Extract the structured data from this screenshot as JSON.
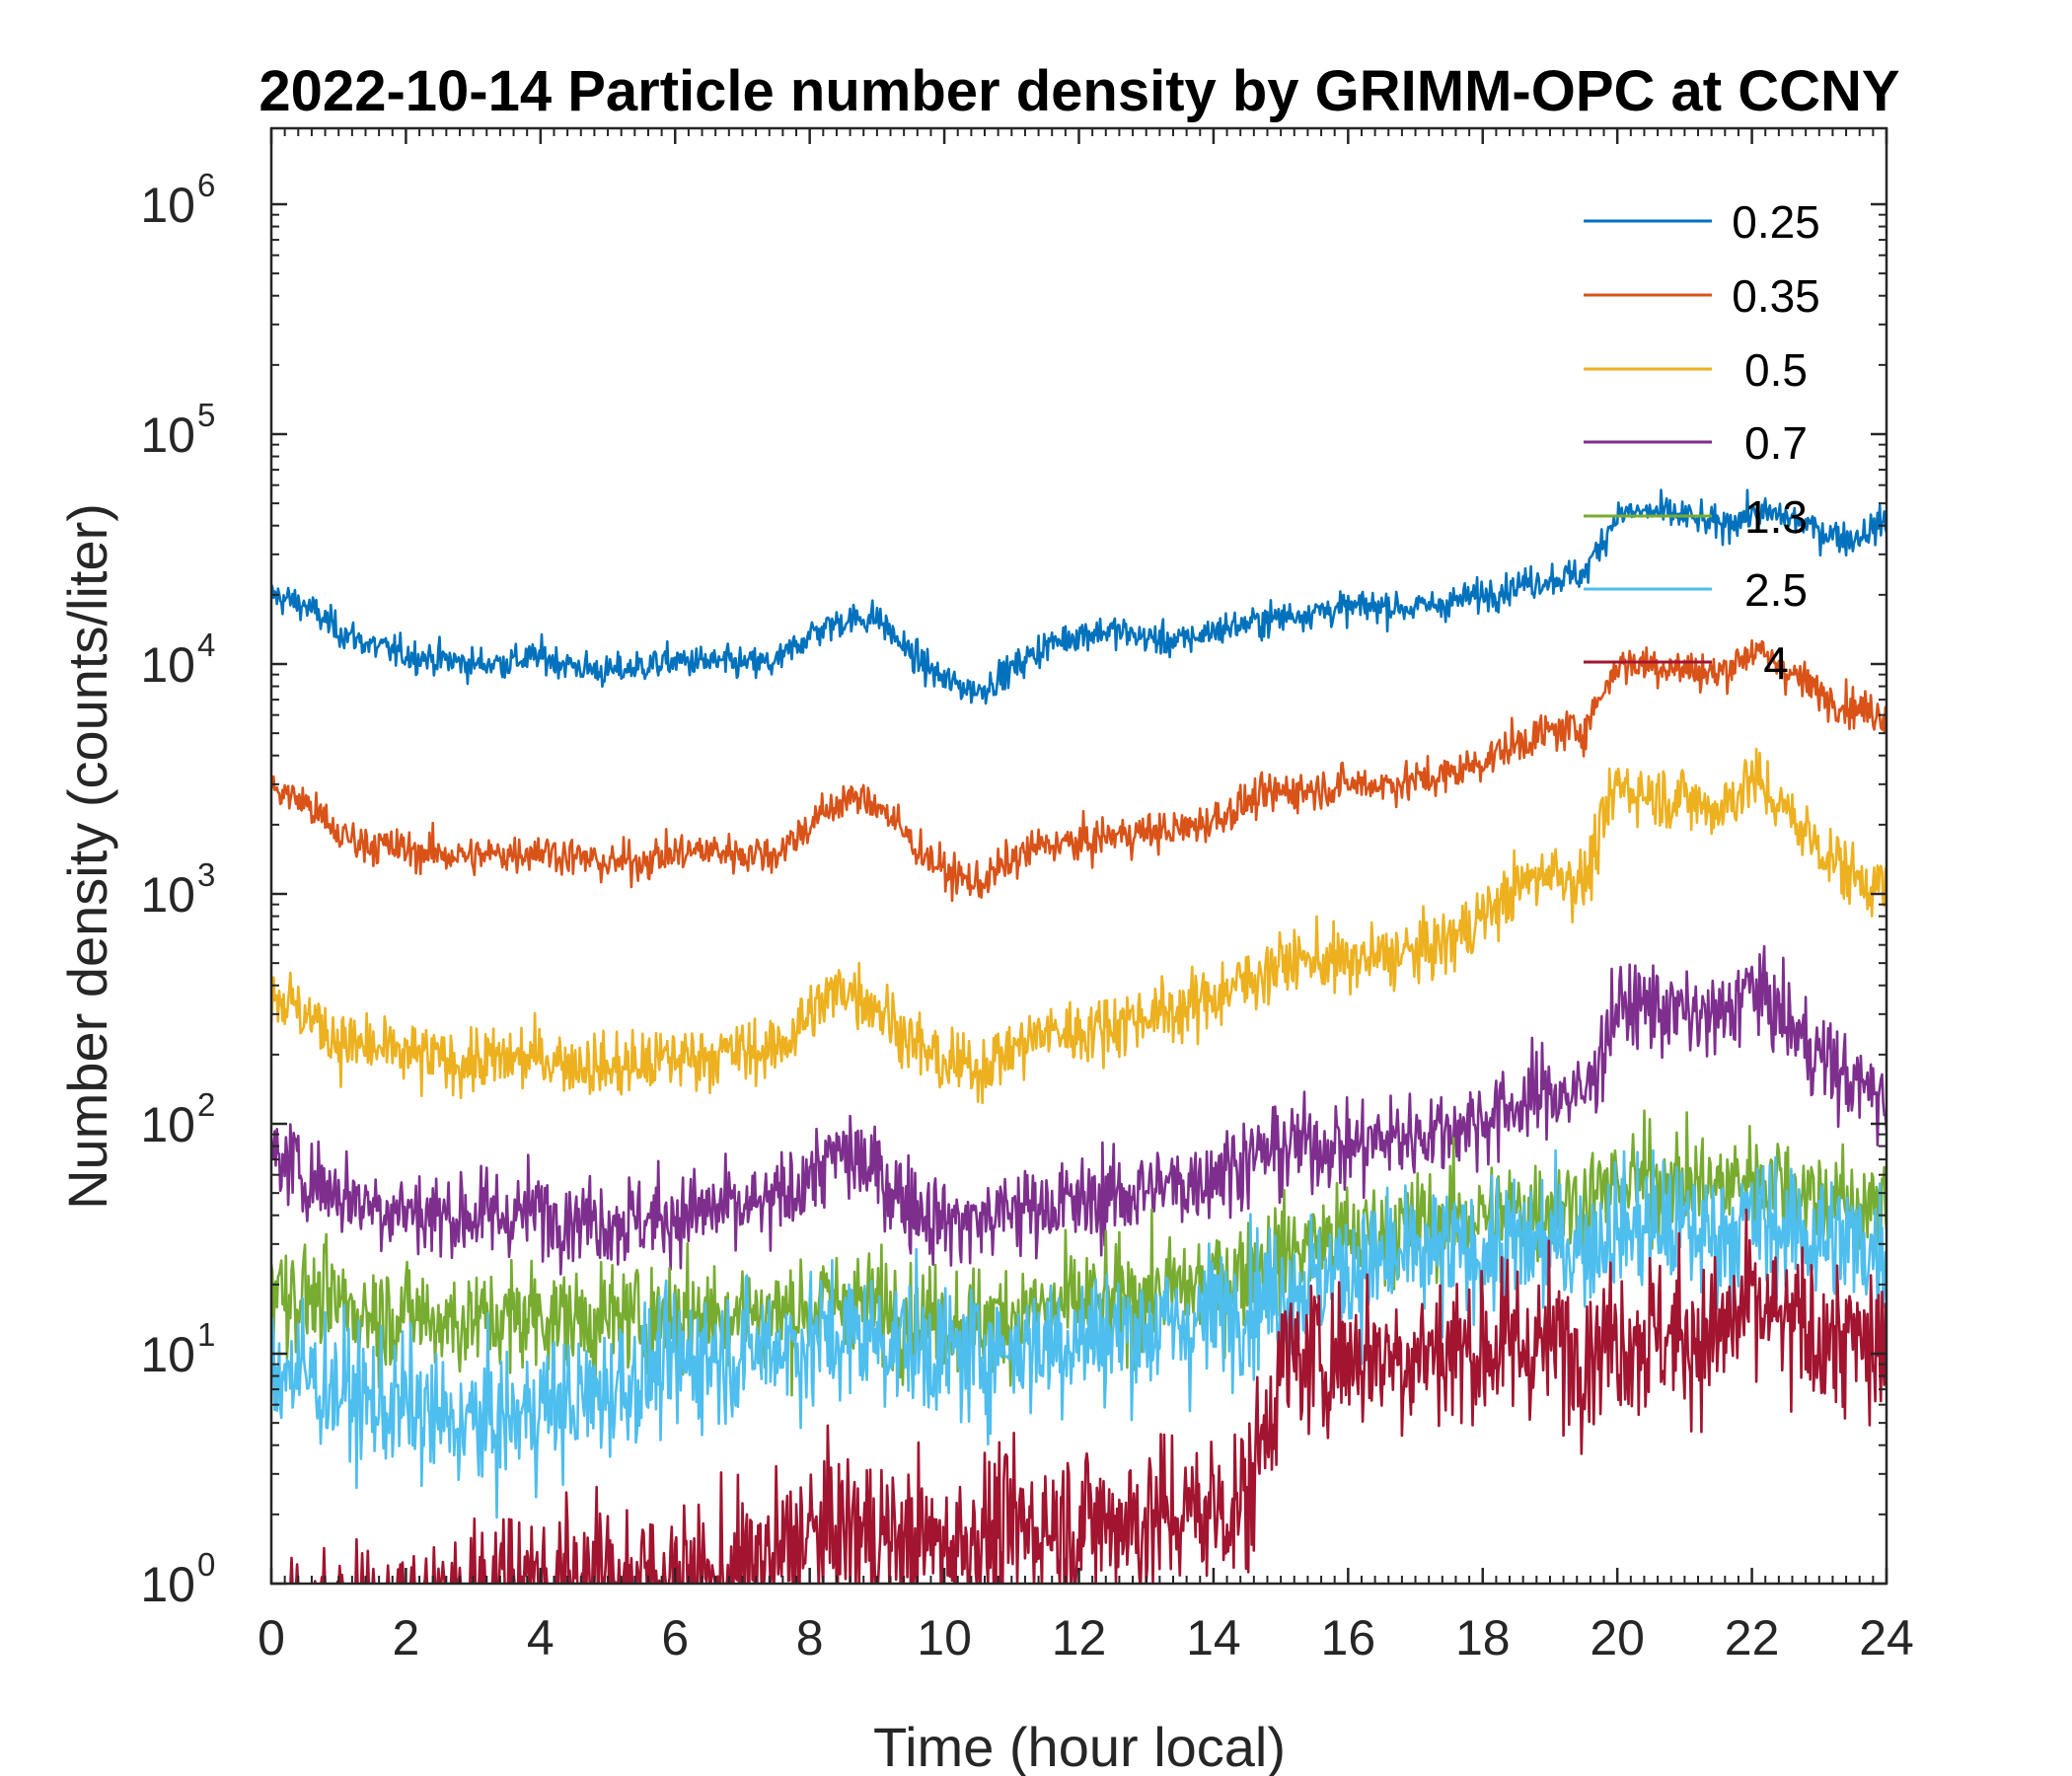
{
  "chart_data": {
    "type": "line",
    "title": "2022-10-14 Particle number density by GRIMM-OPC at CCNY",
    "xlabel": "Time (hour local)",
    "ylabel": "Number density (counts/liter)",
    "xlim": [
      0,
      24
    ],
    "ylim": [
      1,
      2000000
    ],
    "yscale": "log",
    "xticks": [
      "0",
      "2",
      "4",
      "6",
      "8",
      "10",
      "12",
      "14",
      "16",
      "18",
      "20",
      "22",
      "24"
    ],
    "yticks": [
      {
        "value": 1,
        "base": "10",
        "exp": "0"
      },
      {
        "value": 10,
        "base": "10",
        "exp": "1"
      },
      {
        "value": 100,
        "base": "10",
        "exp": "2"
      },
      {
        "value": 1000,
        "base": "10",
        "exp": "3"
      },
      {
        "value": 10000,
        "base": "10",
        "exp": "4"
      },
      {
        "value": 100000,
        "base": "10",
        "exp": "5"
      },
      {
        "value": 1000000,
        "base": "10",
        "exp": "6"
      }
    ],
    "legend_position": "top-right",
    "x": [
      0,
      0.5,
      1,
      1.5,
      2,
      2.5,
      3,
      3.5,
      4,
      4.5,
      5,
      5.5,
      6,
      6.5,
      7,
      7.5,
      8,
      8.5,
      9,
      9.5,
      10,
      10.5,
      11,
      11.5,
      12,
      12.5,
      13,
      13.5,
      14,
      14.5,
      15,
      15.5,
      16,
      16.5,
      17,
      17.5,
      18,
      18.5,
      19,
      19.5,
      20,
      20.5,
      21,
      21.5,
      22,
      22.5,
      23,
      23.5,
      24
    ],
    "series": [
      {
        "name": "0.25",
        "color": "#0072BD",
        "noise": 0.09,
        "values": [
          20000,
          18000,
          14000,
          12000,
          11000,
          10500,
          10000,
          10200,
          10800,
          9800,
          9200,
          9800,
          10300,
          10200,
          10000,
          10100,
          13500,
          15500,
          16000,
          11000,
          8500,
          7600,
          9500,
          12000,
          13500,
          14000,
          13000,
          12500,
          14000,
          15000,
          16000,
          17000,
          17500,
          18000,
          17500,
          18500,
          20000,
          22000,
          23500,
          24500,
          45000,
          46000,
          44000,
          40000,
          45000,
          44000,
          38000,
          35000,
          42000
        ]
      },
      {
        "name": "0.35",
        "color": "#D95319",
        "noise": 0.11,
        "values": [
          2900,
          2500,
          1800,
          1650,
          1550,
          1500,
          1450,
          1500,
          1550,
          1450,
          1350,
          1400,
          1500,
          1550,
          1500,
          1500,
          2000,
          2600,
          2500,
          1700,
          1250,
          1100,
          1400,
          1650,
          1650,
          1800,
          1850,
          1900,
          2100,
          2500,
          2800,
          2850,
          3000,
          3000,
          3100,
          3300,
          3800,
          4500,
          5100,
          5200,
          10000,
          10000,
          9500,
          9000,
          11500,
          9500,
          7500,
          6500,
          6000
        ]
      },
      {
        "name": "0.5",
        "color": "#EDB120",
        "noise": 0.18,
        "values": [
          380,
          300,
          230,
          210,
          200,
          190,
          185,
          190,
          195,
          185,
          175,
          180,
          195,
          200,
          205,
          210,
          300,
          400,
          330,
          230,
          180,
          175,
          210,
          250,
          250,
          270,
          300,
          310,
          360,
          420,
          500,
          520,
          500,
          530,
          560,
          620,
          800,
          1050,
          1300,
          1100,
          3000,
          2700,
          2600,
          2300,
          3200,
          2300,
          1600,
          1200,
          1050
        ]
      },
      {
        "name": "0.7",
        "color": "#7E2F8E",
        "noise": 0.25,
        "values": [
          75,
          60,
          50,
          45,
          42,
          40,
          40,
          40,
          42,
          40,
          38,
          38,
          40,
          42,
          42,
          45,
          60,
          75,
          60,
          45,
          38,
          38,
          42,
          45,
          45,
          48,
          52,
          54,
          62,
          70,
          78,
          82,
          80,
          85,
          90,
          95,
          105,
          120,
          140,
          130,
          320,
          330,
          300,
          280,
          400,
          280,
          200,
          150,
          130
        ]
      },
      {
        "name": "1.3",
        "color": "#77AC30",
        "noise": 0.3,
        "values": [
          20,
          18,
          16,
          15,
          15,
          14,
          14,
          14,
          15,
          14,
          14,
          14,
          15,
          15,
          15,
          15,
          16,
          17,
          16,
          15,
          14,
          14,
          15,
          16,
          16,
          17,
          18,
          19,
          21,
          23,
          27,
          30,
          32,
          34,
          36,
          38,
          40,
          42,
          45,
          45,
          55,
          58,
          55,
          52,
          60,
          55,
          48,
          44,
          42
        ]
      },
      {
        "name": "2.5",
        "color": "#4DBEEE",
        "noise": 0.38,
        "values": [
          9,
          8,
          7,
          6,
          6,
          5,
          5,
          5,
          6,
          6,
          7,
          8,
          9,
          10,
          10,
          11,
          11,
          12,
          12,
          11,
          10,
          10,
          11,
          11,
          12,
          12,
          13,
          13,
          15,
          17,
          19,
          21,
          23,
          25,
          26,
          27,
          28,
          29,
          30,
          30,
          35,
          36,
          35,
          33,
          38,
          35,
          32,
          30,
          28
        ]
      },
      {
        "name": "4",
        "color": "#A2142F",
        "noise": 0.45,
        "values": [
          0.6,
          0.6,
          0.6,
          0.6,
          0.7,
          0.8,
          0.9,
          1,
          1,
          1,
          1,
          1,
          1,
          1,
          1.1,
          1.3,
          1.6,
          1.7,
          1.6,
          1.5,
          1.5,
          1.6,
          1.7,
          1.8,
          1.8,
          1.9,
          1.9,
          2,
          2.1,
          2.3,
          9,
          9.5,
          10,
          10,
          10,
          10.5,
          10.5,
          11,
          11,
          11,
          12,
          12,
          12,
          12,
          16,
          13,
          12,
          11,
          10
        ]
      }
    ]
  }
}
